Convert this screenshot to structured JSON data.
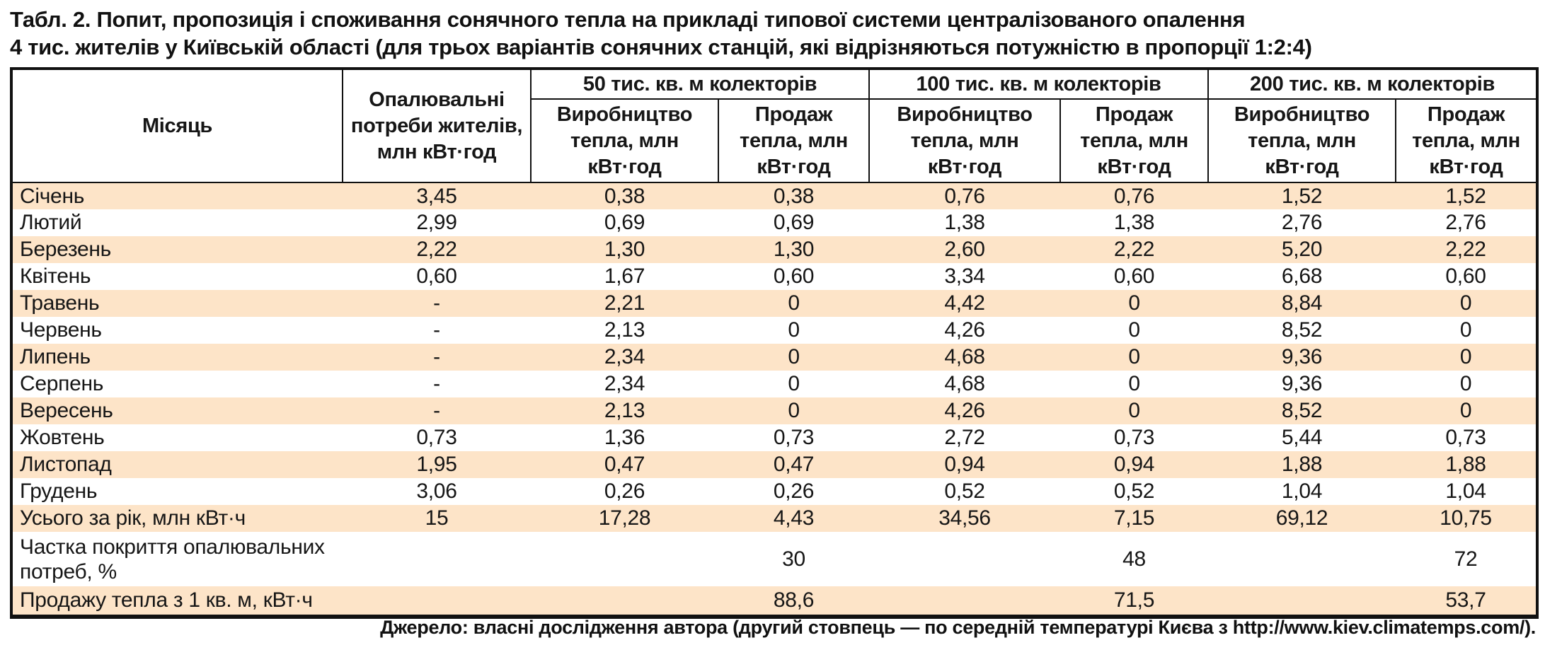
{
  "title": {
    "line1": "Табл. 2. Попит, пропозиція і споживання сонячного тепла на прикладі типової системи централізованого опалення",
    "line2": "4 тис. жителів у Київській області (для трьох варіантів сонячних станцій, які відрізняються потужністю в пропорції 1:2:4)"
  },
  "colors": {
    "stripe": "#fde4c8",
    "border": "#111111",
    "text": "#161616"
  },
  "table": {
    "header": {
      "month": "Місяць",
      "heating_needs": "Опалювальні потреби жителів, млн кВт·год",
      "groups": [
        {
          "label": "50 тис. кв. м колекторів"
        },
        {
          "label": "100 тис. кв. м колекторів"
        },
        {
          "label": "200 тис. кв. м колекторів"
        }
      ],
      "production": "Виробництво тепла, млн кВт·год",
      "sales": "Продаж тепла, млн кВт·год"
    },
    "rows": [
      {
        "label": "Січень",
        "cells": [
          "3,45",
          "0,38",
          "0,38",
          "0,76",
          "0,76",
          "1,52",
          "1,52"
        ]
      },
      {
        "label": "Лютий",
        "cells": [
          "2,99",
          "0,69",
          "0,69",
          "1,38",
          "1,38",
          "2,76",
          "2,76"
        ]
      },
      {
        "label": "Березень",
        "cells": [
          "2,22",
          "1,30",
          "1,30",
          "2,60",
          "2,22",
          "5,20",
          "2,22"
        ]
      },
      {
        "label": "Квітень",
        "cells": [
          "0,60",
          "1,67",
          "0,60",
          "3,34",
          "0,60",
          "6,68",
          "0,60"
        ]
      },
      {
        "label": "Травень",
        "cells": [
          "-",
          "2,21",
          "0",
          "4,42",
          "0",
          "8,84",
          "0"
        ]
      },
      {
        "label": "Червень",
        "cells": [
          "-",
          "2,13",
          "0",
          "4,26",
          "0",
          "8,52",
          "0"
        ]
      },
      {
        "label": "Липень",
        "cells": [
          "-",
          "2,34",
          "0",
          "4,68",
          "0",
          "9,36",
          "0"
        ]
      },
      {
        "label": "Серпень",
        "cells": [
          "-",
          "2,34",
          "0",
          "4,68",
          "0",
          "9,36",
          "0"
        ]
      },
      {
        "label": "Вересень",
        "cells": [
          "-",
          "2,13",
          "0",
          "4,26",
          "0",
          "8,52",
          "0"
        ]
      },
      {
        "label": "Жовтень",
        "cells": [
          "0,73",
          "1,36",
          "0,73",
          "2,72",
          "0,73",
          "5,44",
          "0,73"
        ]
      },
      {
        "label": "Листопад",
        "cells": [
          "1,95",
          "0,47",
          "0,47",
          "0,94",
          "0,94",
          "1,88",
          "1,88"
        ]
      },
      {
        "label": "Грудень",
        "cells": [
          "3,06",
          "0,26",
          "0,26",
          "0,52",
          "0,52",
          "1,04",
          "1,04"
        ]
      },
      {
        "label": "Усього за рік, млн кВт·ч",
        "cells": [
          "15",
          "17,28",
          "4,43",
          "34,56",
          "7,15",
          "69,12",
          "10,75"
        ]
      },
      {
        "label": "Частка покриття опалювальних потреб, %",
        "type": "tall",
        "cells": [
          "",
          "",
          "30",
          "",
          "48",
          "",
          "72"
        ]
      },
      {
        "label": "Продажу тепла з 1 кв. м, кВт·ч",
        "type": "last",
        "cells": [
          "",
          "",
          "88,6",
          "",
          "71,5",
          "",
          "53,7"
        ]
      }
    ]
  },
  "source": "Джерело: власні дослідження автора (другий стовпець — по середній температурі Києва з http://www.kiev.climatemps.com/)."
}
